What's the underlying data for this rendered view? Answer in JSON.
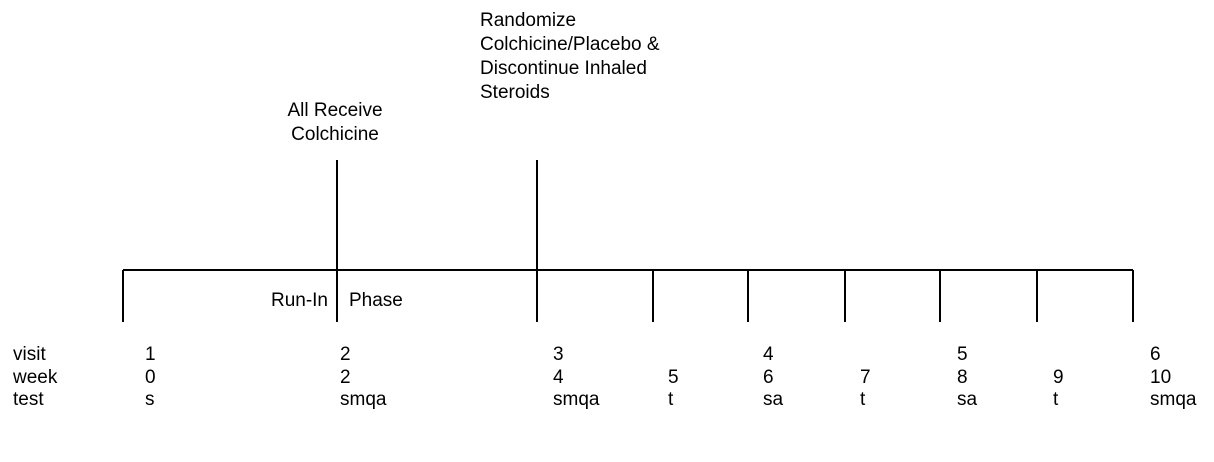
{
  "annotations": [
    {
      "lines": [
        "All Receive",
        "Colchicine"
      ]
    },
    {
      "lines": [
        "Randomize",
        "Colchicine/Placebo &",
        "Discontinue Inhaled",
        "Steroids"
      ]
    }
  ],
  "phase": {
    "left": "Run-In",
    "right": "Phase"
  },
  "row_labels": {
    "visit": "visit",
    "week": "week",
    "test": "test"
  },
  "columns": [
    {
      "visit": "1",
      "week": "0",
      "test": "s"
    },
    {
      "visit": "2",
      "week": "2",
      "test": "smqa"
    },
    {
      "visit": "3",
      "week": "4",
      "test": "smqa"
    },
    {
      "week": "5",
      "test": "t"
    },
    {
      "visit": "4",
      "week": "6",
      "test": "sa"
    },
    {
      "week": "7",
      "test": "t"
    },
    {
      "visit": "5",
      "week": "8",
      "test": "sa"
    },
    {
      "week": "9",
      "test": "t"
    },
    {
      "visit": "6",
      "week": "10",
      "test": "smqa"
    }
  ]
}
